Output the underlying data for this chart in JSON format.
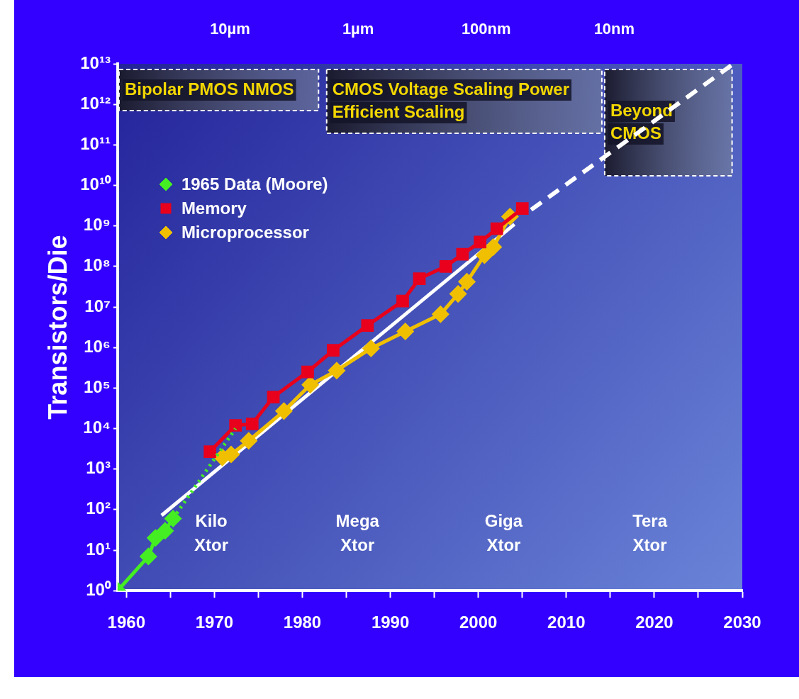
{
  "chart_data": {
    "type": "line",
    "ylabel": "Transistors/Die",
    "log": "y",
    "grid": false,
    "legend": "top left",
    "xlim": [
      1959,
      2030
    ],
    "xticks": [
      {
        "value": 1960,
        "label": "1960"
      },
      {
        "value": 1965,
        "label": null
      },
      {
        "value": 1970,
        "label": "1970"
      },
      {
        "value": 1975,
        "label": null
      },
      {
        "value": 1980,
        "label": "1980"
      },
      {
        "value": 1985,
        "label": null
      },
      {
        "value": 1990,
        "label": "1990"
      },
      {
        "value": 1995,
        "label": null
      },
      {
        "value": 2000,
        "label": "2000"
      },
      {
        "value": 2005,
        "label": null
      },
      {
        "value": 2010,
        "label": "2010"
      },
      {
        "value": 2015,
        "label": null
      },
      {
        "value": 2020,
        "label": "2020"
      },
      {
        "value": 2025,
        "label": null
      },
      {
        "value": 2030,
        "label": "2030"
      }
    ],
    "ylim": [
      1,
      10000000000000
    ],
    "yticks": [
      {
        "value": 1,
        "label": "10⁰"
      },
      {
        "value": 10,
        "label": "10¹"
      },
      {
        "value": 100,
        "label": "10²"
      },
      {
        "value": 1000,
        "label": "10³"
      },
      {
        "value": 10000,
        "label": "10⁴"
      },
      {
        "value": 100000,
        "label": "10⁵"
      },
      {
        "value": 1000000,
        "label": "10⁶"
      },
      {
        "value": 10000000,
        "label": "10⁷"
      },
      {
        "value": 100000000,
        "label": "10⁸"
      },
      {
        "value": 1000000000,
        "label": "10⁹"
      },
      {
        "value": 10000000000,
        "label": "10¹⁰"
      },
      {
        "value": 100000000000,
        "label": "10¹¹"
      },
      {
        "value": 1000000000000,
        "label": "10¹²"
      },
      {
        "value": 10000000000000,
        "label": "10¹³"
      }
    ],
    "series": [
      {
        "name": "1965 Data (Moore)",
        "color": "#44ee22",
        "marker": "diamond",
        "line_style": "solid",
        "x": [
          1959,
          1962.5,
          1963.3,
          1964.4,
          1965.3
        ],
        "values": [
          1,
          7,
          20,
          30,
          60
        ]
      },
      {
        "color": "#44ee22",
        "marker": "none",
        "line_style": "dotted",
        "x": [
          1965.3,
          1972.4
        ],
        "values": [
          60,
          10000
        ]
      },
      {
        "name": "Memory",
        "color": "#e8001c",
        "marker": "square",
        "line_style": "solid",
        "x": [
          1969.5,
          1972.4,
          1974.3,
          1976.7,
          1980.6,
          1983.5,
          1987.4,
          1991.4,
          1993.3,
          1996.3,
          1998.2,
          2000.2,
          2002.1,
          2005.0
        ],
        "values": [
          2700,
          12000,
          13000,
          60000,
          250000,
          850000,
          3500000,
          14000000,
          50000000,
          100000000,
          200000000,
          400000000,
          850000000,
          2700000000
        ]
      },
      {
        "name": "Microprocessor",
        "color": "#f0c000",
        "marker": "diamond",
        "line_style": "solid",
        "x": [
          1970.9,
          1971.9,
          1973.9,
          1977.9,
          1980.9,
          1983.9,
          1987.8,
          1991.7,
          1995.7,
          1997.7,
          1998.7,
          2000.7,
          2001.7,
          2003.6
        ],
        "values": [
          1950,
          2300,
          5000,
          27000,
          120000,
          270000,
          950000,
          2500000,
          6600000,
          21000000,
          42000000,
          190000000,
          300000000,
          1700000000
        ]
      },
      {
        "color": "#ffffff",
        "marker": "none",
        "line_style": "solid",
        "x": [
          1964,
          2004.1
        ],
        "values": [
          72,
          1100000000
        ]
      },
      {
        "color": "#ffffff",
        "marker": "none",
        "line_style": "dashed",
        "x": [
          2006,
          2029
        ],
        "values": [
          2500000000,
          10000000000000
        ]
      }
    ],
    "bands": [
      {
        "axis": "x",
        "from": 1959,
        "to": 1982,
        "label": "Bipolar PMOS NMOS",
        "color": "#1a1a2e"
      },
      {
        "axis": "x",
        "from": 1982.6,
        "to": 2014.2,
        "label": "CMOS Voltage Scaling Power Efficient Scaling",
        "color": "#1a1a2e"
      },
      {
        "axis": "x",
        "from": 2014.2,
        "to": 2029,
        "label": "Beyond CMOS",
        "color": "#1a1a2e"
      }
    ],
    "annotations": [
      "10µm",
      "1µm",
      "100nm",
      "10nm",
      "Kilo Xtor",
      "Mega Xtor",
      "Giga Xtor",
      "Tera Xtor"
    ]
  }
}
